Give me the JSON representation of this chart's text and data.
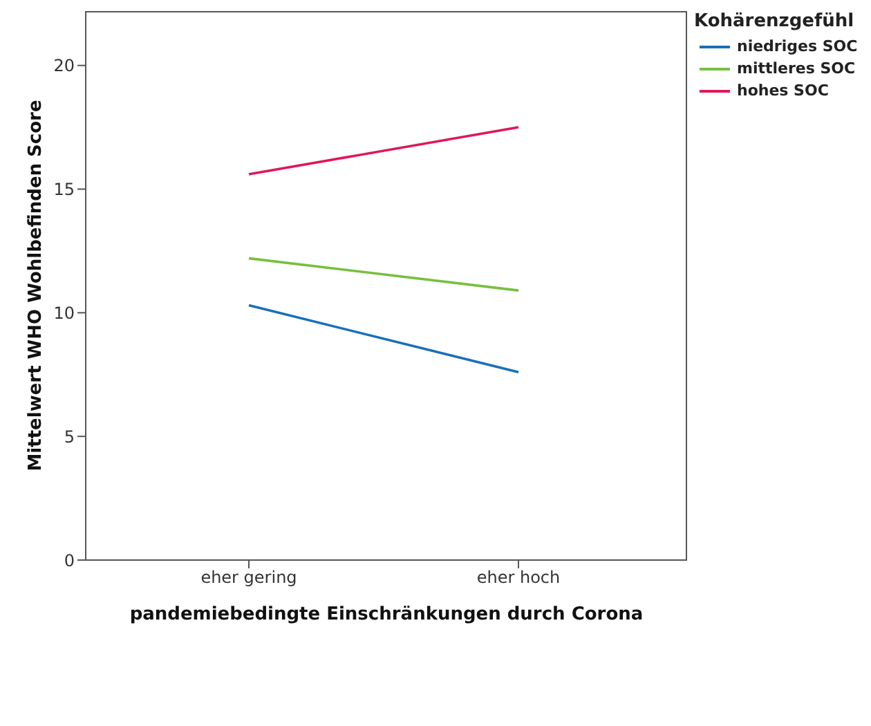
{
  "chart_data": {
    "type": "line",
    "xlabel": "pandemiebedingte Einschränkungen durch Corona",
    "ylabel": "Mittelwert WHO Wohlbefinden Score",
    "legend_title": "Kohärenzgefühl",
    "categories": [
      "eher gering",
      "eher hoch"
    ],
    "series": [
      {
        "name": "niedriges SOC",
        "color": "#1a6fb9",
        "values": [
          10.3,
          7.6
        ]
      },
      {
        "name": "mittleres SOC",
        "color": "#77bf3f",
        "values": [
          12.2,
          10.9
        ]
      },
      {
        "name": "hohes SOC",
        "color": "#e0175a",
        "values": [
          15.6,
          17.5
        ]
      }
    ],
    "ylim": [
      0,
      22.2
    ],
    "yticks": [
      0,
      5,
      10,
      15,
      20
    ],
    "grid": false,
    "legend": "top right",
    "marker": "none",
    "line_style": "solid"
  }
}
